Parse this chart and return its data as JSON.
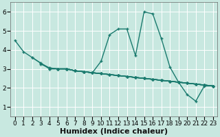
{
  "xlabel": "Humidex (Indice chaleur)",
  "ylabel": "",
  "bg_color": "#c8e8e0",
  "grid_color": "#ffffff",
  "line_color": "#1a7a6e",
  "xlim": [
    -0.5,
    23.5
  ],
  "ylim": [
    0.5,
    6.5
  ],
  "xticks": [
    0,
    1,
    2,
    3,
    4,
    5,
    6,
    7,
    8,
    9,
    10,
    11,
    12,
    13,
    14,
    15,
    16,
    17,
    18,
    19,
    20,
    21,
    22,
    23
  ],
  "yticks": [
    1,
    2,
    3,
    4,
    5,
    6
  ],
  "series": [
    {
      "x": [
        0,
        1,
        2,
        3,
        4,
        5,
        6,
        7,
        8,
        9,
        10,
        11,
        12,
        13,
        14,
        15,
        16,
        17,
        18,
        19,
        20,
        21,
        22,
        23
      ],
      "y": [
        4.5,
        3.9,
        3.6,
        3.3,
        3.0,
        3.0,
        3.0,
        2.9,
        2.85,
        2.8,
        3.4,
        4.8,
        5.1,
        5.1,
        3.7,
        6.0,
        5.9,
        4.6,
        3.1,
        2.3,
        1.65,
        1.3,
        2.1,
        2.1
      ]
    },
    {
      "x": [
        2,
        3,
        4,
        5,
        6,
        7,
        8,
        9,
        10,
        11,
        12,
        13,
        14,
        15,
        16,
        17,
        18,
        19,
        20,
        21,
        22,
        23
      ],
      "y": [
        3.6,
        3.3,
        3.05,
        3.0,
        3.0,
        2.9,
        2.85,
        2.8,
        2.75,
        2.7,
        2.65,
        2.6,
        2.55,
        2.5,
        2.45,
        2.4,
        2.35,
        2.3,
        2.25,
        2.2,
        2.15,
        2.1
      ]
    },
    {
      "x": [
        3,
        4,
        5,
        6,
        7,
        8,
        9,
        10,
        11,
        12,
        13,
        14,
        15,
        16,
        17,
        18,
        19,
        20,
        21,
        22,
        23
      ],
      "y": [
        3.25,
        3.05,
        3.0,
        3.0,
        2.9,
        2.85,
        2.8,
        2.75,
        2.7,
        2.65,
        2.6,
        2.55,
        2.5,
        2.45,
        2.4,
        2.35,
        2.3,
        2.25,
        2.2,
        2.15,
        2.1
      ]
    },
    {
      "x": [
        4,
        5,
        6,
        7,
        8,
        9,
        10,
        11,
        12,
        13,
        14,
        15,
        16,
        17,
        18,
        19,
        20,
        21,
        22,
        23
      ],
      "y": [
        3.0,
        3.0,
        3.0,
        2.9,
        2.85,
        2.8,
        2.75,
        2.7,
        2.65,
        2.6,
        2.55,
        2.5,
        2.45,
        2.4,
        2.35,
        2.3,
        2.25,
        2.2,
        2.15,
        2.1
      ]
    },
    {
      "x": [
        5,
        6,
        7,
        8,
        9,
        10,
        11,
        12,
        13,
        14,
        15,
        16,
        17,
        18,
        19,
        20,
        21,
        22,
        23
      ],
      "y": [
        3.0,
        3.0,
        2.9,
        2.85,
        2.8,
        2.75,
        2.7,
        2.65,
        2.6,
        2.55,
        2.5,
        2.45,
        2.4,
        2.35,
        2.3,
        2.25,
        2.2,
        2.15,
        2.1
      ]
    },
    {
      "x": [
        6,
        7,
        8,
        9,
        10,
        11,
        12,
        13,
        14,
        15,
        16,
        17,
        18,
        19,
        20,
        21,
        22,
        23
      ],
      "y": [
        3.0,
        2.9,
        2.85,
        2.8,
        2.75,
        2.7,
        2.65,
        2.6,
        2.55,
        2.5,
        2.45,
        2.4,
        2.35,
        2.3,
        2.25,
        2.2,
        2.15,
        2.1
      ]
    }
  ],
  "xlabel_fontsize": 8,
  "tick_fontsize": 6.5
}
